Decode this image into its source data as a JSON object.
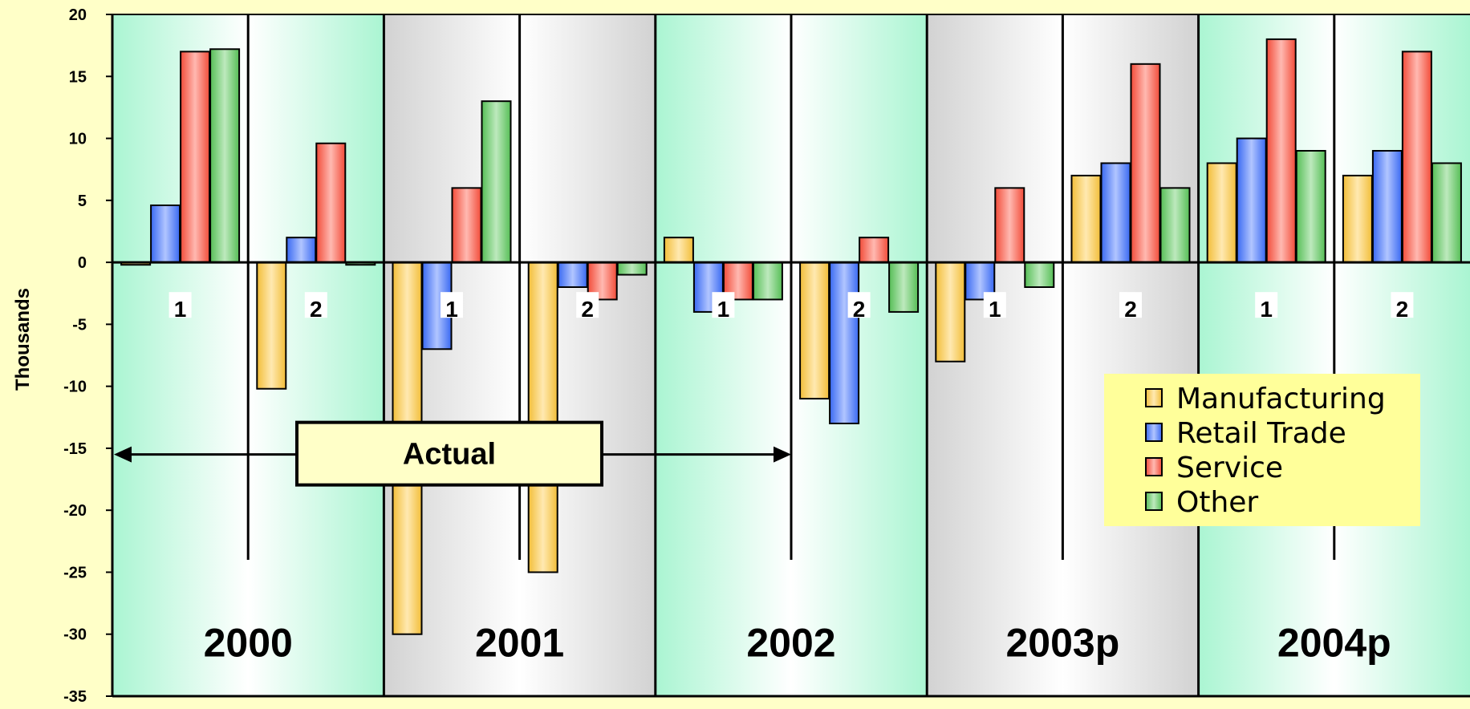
{
  "chart_data": {
    "type": "bar",
    "ylabel": "Thousands",
    "ylim": [
      -35,
      20
    ],
    "yticks": [
      20,
      15,
      10,
      5,
      0,
      -5,
      -10,
      -15,
      -20,
      -25,
      -30,
      -35
    ],
    "years": [
      "2000",
      "2001",
      "2002",
      "2003p",
      "2004p"
    ],
    "halves": [
      "1",
      "2"
    ],
    "categories": [
      "2000-1",
      "2000-2",
      "2001-1",
      "2001-2",
      "2002-1",
      "2002-2",
      "2003p-1",
      "2003p-2",
      "2004p-1",
      "2004p-2"
    ],
    "series": [
      {
        "name": "Manufacturing",
        "color": "#ffc83c",
        "values": [
          -0.2,
          -10.2,
          -30,
          -25,
          2,
          -11,
          -8,
          7,
          8,
          7
        ]
      },
      {
        "name": "Retail Trade",
        "color": "#3c6eff",
        "values": [
          4.6,
          2,
          -7,
          -2,
          -4,
          -13,
          -3,
          8,
          10,
          9
        ]
      },
      {
        "name": "Service",
        "color": "#ff503c",
        "values": [
          17,
          9.6,
          6,
          -3,
          -3,
          2,
          6,
          16,
          18,
          17
        ]
      },
      {
        "name": "Other",
        "color": "#5ac85a",
        "values": [
          17.2,
          -0.2,
          13,
          -1,
          -3,
          -4,
          -2,
          6,
          9,
          8
        ]
      }
    ],
    "annotation": "Actual",
    "legend_position": "lower-right",
    "band_colors": [
      "#aaf5d2",
      "#d2d2d2",
      "#aaf5d2",
      "#d2d2d2",
      "#aaf5d2"
    ]
  }
}
